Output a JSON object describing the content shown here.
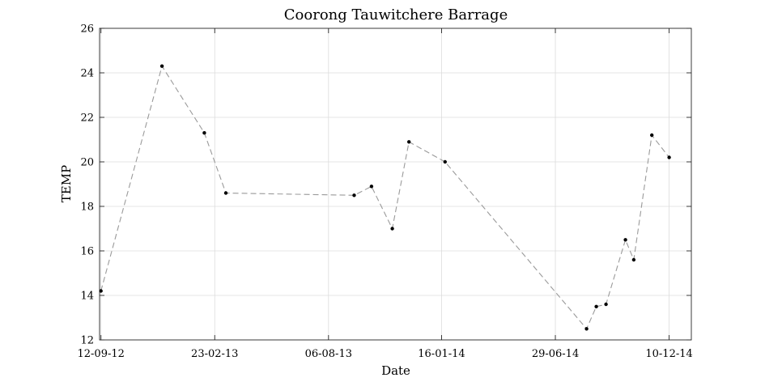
{
  "chart_data": {
    "type": "line",
    "title": "Coorong Tauwitchere Barrage",
    "xlabel": "Date",
    "ylabel": "TEMP",
    "x_axis": {
      "type": "date",
      "range": [
        "2012-09-10",
        "2015-01-11"
      ],
      "ticks": [
        {
          "date": "2012-09-12",
          "label": "12-09-12"
        },
        {
          "date": "2013-02-23",
          "label": "23-02-13"
        },
        {
          "date": "2013-08-06",
          "label": "06-08-13"
        },
        {
          "date": "2014-01-16",
          "label": "16-01-14"
        },
        {
          "date": "2014-06-29",
          "label": "29-06-14"
        },
        {
          "date": "2014-12-10",
          "label": "10-12-14"
        }
      ]
    },
    "ylim": [
      12,
      26
    ],
    "yticks": [
      12,
      14,
      16,
      18,
      20,
      22,
      24,
      26
    ],
    "grid": true,
    "legend": "none",
    "line_style": "dashed",
    "line_color": "#9a9a9a",
    "marker_color": "#000000",
    "series": [
      {
        "points": [
          {
            "x": "2012-09-12",
            "y": 14.2
          },
          {
            "x": "2012-12-09",
            "y": 24.3
          },
          {
            "x": "2013-02-08",
            "y": 21.3
          },
          {
            "x": "2013-03-11",
            "y": 18.6
          },
          {
            "x": "2013-09-12",
            "y": 18.5
          },
          {
            "x": "2013-10-07",
            "y": 18.9
          },
          {
            "x": "2013-11-06",
            "y": 17.0
          },
          {
            "x": "2013-11-30",
            "y": 20.9
          },
          {
            "x": "2014-01-21",
            "y": 20.0
          },
          {
            "x": "2014-08-13",
            "y": 12.5
          },
          {
            "x": "2014-08-27",
            "y": 13.5
          },
          {
            "x": "2014-09-10",
            "y": 13.6
          },
          {
            "x": "2014-10-08",
            "y": 16.5
          },
          {
            "x": "2014-10-20",
            "y": 15.6
          },
          {
            "x": "2014-11-15",
            "y": 21.2
          },
          {
            "x": "2014-12-10",
            "y": 20.2
          }
        ]
      }
    ]
  }
}
